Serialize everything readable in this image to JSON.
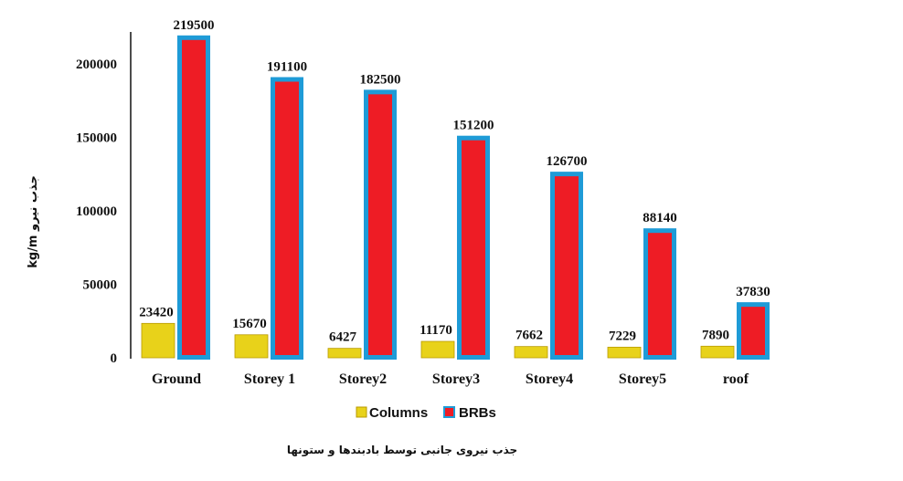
{
  "chart_data": {
    "type": "bar",
    "categories": [
      "Ground",
      "Storey 1",
      "Storey2",
      "Storey3",
      "Storey4",
      "Storey5",
      "roof"
    ],
    "series": [
      {
        "name": "Columns",
        "values": [
          23420,
          15670,
          6427,
          11170,
          7662,
          7229,
          7890
        ],
        "color": "#e8d21a"
      },
      {
        "name": "BRBs",
        "values": [
          219500,
          191100,
          182500,
          151200,
          126700,
          88140,
          37830
        ],
        "color": "#ee1c25",
        "edge_color": "#1e9bd7"
      }
    ],
    "yticks": [
      "0",
      "50000",
      "100000",
      "150000",
      "200000"
    ],
    "ylim": [
      0,
      220000
    ],
    "ylabel": "kg/m جذب نیرو",
    "caption": "جذب نیروی جانبی توسط بادبندها و ستونها",
    "legend_position": "bottom"
  }
}
